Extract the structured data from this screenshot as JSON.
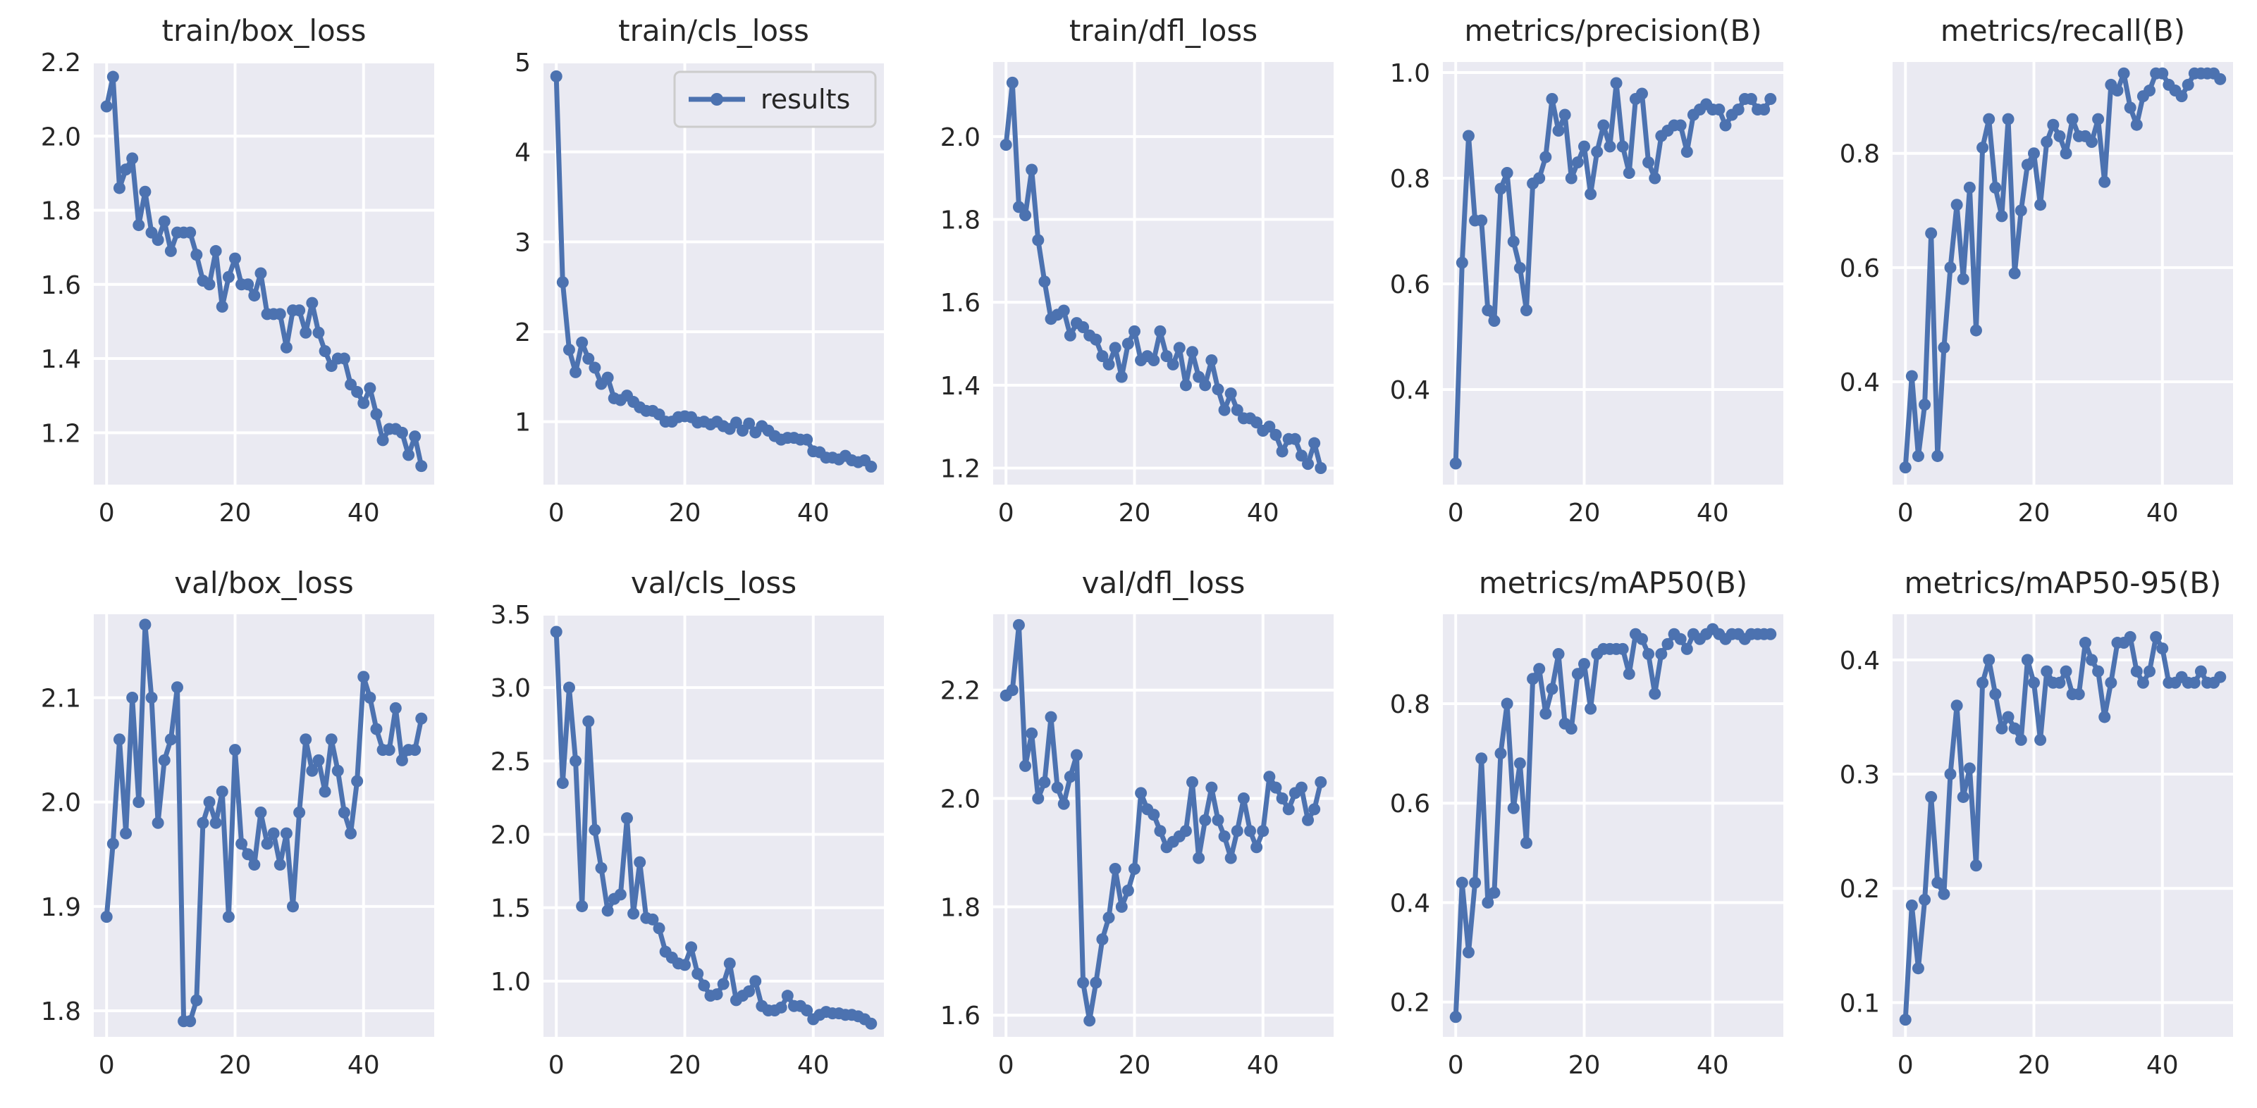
{
  "figure": {
    "legend_label": "results",
    "colors": {
      "background": "#eaeaf2",
      "series": "#4c72b0",
      "grid": "#ffffff",
      "text": "#262626"
    }
  },
  "chart_data": [
    {
      "type": "line",
      "title": "train/box_loss",
      "xlim": [
        -2,
        51
      ],
      "ylim": [
        1.06,
        2.2
      ],
      "xticks": [
        0,
        20,
        40
      ],
      "yticks": [
        1.2,
        1.4,
        1.6,
        1.8,
        2.0,
        2.2
      ],
      "y": [
        2.08,
        2.16,
        1.86,
        1.91,
        1.94,
        1.76,
        1.85,
        1.74,
        1.72,
        1.77,
        1.69,
        1.74,
        1.74,
        1.74,
        1.68,
        1.61,
        1.6,
        1.69,
        1.54,
        1.62,
        1.67,
        1.6,
        1.6,
        1.57,
        1.63,
        1.52,
        1.52,
        1.52,
        1.43,
        1.53,
        1.53,
        1.47,
        1.55,
        1.47,
        1.42,
        1.38,
        1.4,
        1.4,
        1.33,
        1.31,
        1.28,
        1.32,
        1.25,
        1.18,
        1.21,
        1.21,
        1.2,
        1.14,
        1.19,
        1.11
      ]
    },
    {
      "type": "line",
      "title": "train/cls_loss",
      "xlim": [
        -2,
        51
      ],
      "ylim": [
        0.3,
        5.0
      ],
      "xticks": [
        0,
        20,
        40
      ],
      "yticks": [
        1,
        2,
        3,
        4,
        5
      ],
      "legend": "top-right",
      "y": [
        4.84,
        2.55,
        1.8,
        1.55,
        1.88,
        1.7,
        1.6,
        1.42,
        1.49,
        1.26,
        1.24,
        1.29,
        1.22,
        1.16,
        1.12,
        1.12,
        1.08,
        1.0,
        1.0,
        1.05,
        1.06,
        1.05,
        0.99,
        1.0,
        0.97,
        1.0,
        0.95,
        0.92,
        0.99,
        0.9,
        0.98,
        0.88,
        0.95,
        0.9,
        0.84,
        0.8,
        0.82,
        0.82,
        0.8,
        0.8,
        0.67,
        0.66,
        0.6,
        0.6,
        0.58,
        0.62,
        0.57,
        0.55,
        0.57,
        0.5
      ]
    },
    {
      "type": "line",
      "title": "train/dfl_loss",
      "xlim": [
        -2,
        51
      ],
      "ylim": [
        1.16,
        2.18
      ],
      "xticks": [
        0,
        20,
        40
      ],
      "yticks": [
        1.2,
        1.4,
        1.6,
        1.8,
        2.0
      ],
      "y": [
        1.98,
        2.13,
        1.83,
        1.81,
        1.92,
        1.75,
        1.65,
        1.56,
        1.57,
        1.58,
        1.52,
        1.55,
        1.54,
        1.52,
        1.51,
        1.47,
        1.45,
        1.49,
        1.42,
        1.5,
        1.53,
        1.46,
        1.47,
        1.46,
        1.53,
        1.47,
        1.45,
        1.49,
        1.4,
        1.48,
        1.42,
        1.4,
        1.46,
        1.39,
        1.34,
        1.38,
        1.34,
        1.32,
        1.32,
        1.31,
        1.29,
        1.3,
        1.28,
        1.24,
        1.27,
        1.27,
        1.23,
        1.21,
        1.26,
        1.2
      ]
    },
    {
      "type": "line",
      "title": "metrics/precision(B)",
      "xlim": [
        -2,
        51
      ],
      "ylim": [
        0.22,
        1.02
      ],
      "xticks": [
        0,
        20,
        40
      ],
      "yticks": [
        0.4,
        0.6,
        0.8,
        1.0
      ],
      "y": [
        0.26,
        0.64,
        0.88,
        0.72,
        0.72,
        0.55,
        0.53,
        0.78,
        0.81,
        0.68,
        0.63,
        0.55,
        0.79,
        0.8,
        0.84,
        0.95,
        0.89,
        0.92,
        0.8,
        0.83,
        0.86,
        0.77,
        0.85,
        0.9,
        0.86,
        0.98,
        0.86,
        0.81,
        0.95,
        0.96,
        0.83,
        0.8,
        0.88,
        0.89,
        0.9,
        0.9,
        0.85,
        0.92,
        0.93,
        0.94,
        0.93,
        0.93,
        0.9,
        0.92,
        0.93,
        0.95,
        0.95,
        0.93,
        0.93,
        0.95
      ]
    },
    {
      "type": "line",
      "title": "metrics/recall(B)",
      "xlim": [
        -2,
        51
      ],
      "ylim": [
        0.22,
        0.96
      ],
      "xticks": [
        0,
        20,
        40
      ],
      "yticks": [
        0.4,
        0.6,
        0.8
      ],
      "y": [
        0.25,
        0.41,
        0.27,
        0.36,
        0.66,
        0.27,
        0.46,
        0.6,
        0.71,
        0.58,
        0.74,
        0.49,
        0.81,
        0.86,
        0.74,
        0.69,
        0.86,
        0.59,
        0.7,
        0.78,
        0.8,
        0.71,
        0.82,
        0.85,
        0.83,
        0.8,
        0.86,
        0.83,
        0.83,
        0.82,
        0.86,
        0.75,
        0.92,
        0.91,
        0.94,
        0.88,
        0.85,
        0.9,
        0.91,
        0.94,
        0.94,
        0.92,
        0.91,
        0.9,
        0.92,
        0.94,
        0.94,
        0.94,
        0.94,
        0.93
      ]
    },
    {
      "type": "line",
      "title": "val/box_loss",
      "xlim": [
        -2,
        51
      ],
      "ylim": [
        1.775,
        2.18
      ],
      "xticks": [
        0,
        20,
        40
      ],
      "yticks": [
        1.8,
        1.9,
        2.0,
        2.1
      ],
      "y": [
        1.89,
        1.96,
        2.06,
        1.97,
        2.1,
        2.0,
        2.17,
        2.1,
        1.98,
        2.04,
        2.06,
        2.11,
        1.79,
        1.79,
        1.81,
        1.98,
        2.0,
        1.98,
        2.01,
        1.89,
        2.05,
        1.96,
        1.95,
        1.94,
        1.99,
        1.96,
        1.97,
        1.94,
        1.97,
        1.9,
        1.99,
        2.06,
        2.03,
        2.04,
        2.01,
        2.06,
        2.03,
        1.99,
        1.97,
        2.02,
        2.12,
        2.1,
        2.07,
        2.05,
        2.05,
        2.09,
        2.04,
        2.05,
        2.05,
        2.08
      ]
    },
    {
      "type": "line",
      "title": "val/cls_loss",
      "xlim": [
        -2,
        51
      ],
      "ylim": [
        0.62,
        3.5
      ],
      "xticks": [
        0,
        20,
        40
      ],
      "yticks": [
        1.0,
        1.5,
        2.0,
        2.5,
        3.0,
        3.5
      ],
      "y": [
        3.38,
        2.35,
        3.0,
        2.5,
        1.51,
        2.77,
        2.03,
        1.77,
        1.48,
        1.56,
        1.59,
        2.11,
        1.46,
        1.81,
        1.43,
        1.42,
        1.36,
        1.2,
        1.16,
        1.12,
        1.11,
        1.23,
        1.05,
        0.97,
        0.9,
        0.91,
        0.98,
        1.12,
        0.87,
        0.9,
        0.93,
        1.0,
        0.83,
        0.8,
        0.8,
        0.82,
        0.9,
        0.83,
        0.83,
        0.8,
        0.74,
        0.77,
        0.79,
        0.78,
        0.78,
        0.77,
        0.77,
        0.76,
        0.74,
        0.71
      ]
    },
    {
      "type": "line",
      "title": "val/dfl_loss",
      "xlim": [
        -2,
        51
      ],
      "ylim": [
        1.56,
        2.34
      ],
      "xticks": [
        0,
        20,
        40
      ],
      "yticks": [
        1.6,
        1.8,
        2.0,
        2.2
      ],
      "y": [
        2.19,
        2.2,
        2.32,
        2.06,
        2.12,
        2.0,
        2.03,
        2.15,
        2.02,
        1.99,
        2.04,
        2.08,
        1.66,
        1.59,
        1.66,
        1.74,
        1.78,
        1.87,
        1.8,
        1.83,
        1.87,
        2.01,
        1.98,
        1.97,
        1.94,
        1.91,
        1.92,
        1.93,
        1.94,
        2.03,
        1.89,
        1.96,
        2.02,
        1.96,
        1.93,
        1.89,
        1.94,
        2.0,
        1.94,
        1.91,
        1.94,
        2.04,
        2.02,
        2.0,
        1.98,
        2.01,
        2.02,
        1.96,
        1.98,
        2.03
      ]
    },
    {
      "type": "line",
      "title": "metrics/mAP50(B)",
      "xlim": [
        -2,
        51
      ],
      "ylim": [
        0.13,
        0.98
      ],
      "xticks": [
        0,
        20,
        40
      ],
      "yticks": [
        0.2,
        0.4,
        0.6,
        0.8
      ],
      "y": [
        0.17,
        0.44,
        0.3,
        0.44,
        0.69,
        0.4,
        0.42,
        0.7,
        0.8,
        0.59,
        0.68,
        0.52,
        0.85,
        0.87,
        0.78,
        0.83,
        0.9,
        0.76,
        0.75,
        0.86,
        0.88,
        0.79,
        0.9,
        0.91,
        0.91,
        0.91,
        0.91,
        0.86,
        0.94,
        0.93,
        0.9,
        0.82,
        0.9,
        0.92,
        0.94,
        0.93,
        0.91,
        0.94,
        0.93,
        0.94,
        0.95,
        0.94,
        0.93,
        0.94,
        0.94,
        0.93,
        0.94,
        0.94,
        0.94,
        0.94
      ]
    },
    {
      "type": "line",
      "title": "metrics/mAP50-95(B)",
      "xlim": [
        -2,
        51
      ],
      "ylim": [
        0.07,
        0.44
      ],
      "xticks": [
        0,
        20,
        40
      ],
      "yticks": [
        0.1,
        0.2,
        0.3,
        0.4
      ],
      "y": [
        0.085,
        0.185,
        0.13,
        0.19,
        0.28,
        0.205,
        0.195,
        0.3,
        0.36,
        0.28,
        0.305,
        0.22,
        0.38,
        0.4,
        0.37,
        0.34,
        0.35,
        0.34,
        0.33,
        0.4,
        0.38,
        0.33,
        0.39,
        0.38,
        0.38,
        0.39,
        0.37,
        0.37,
        0.415,
        0.4,
        0.39,
        0.35,
        0.38,
        0.415,
        0.415,
        0.42,
        0.39,
        0.38,
        0.39,
        0.42,
        0.41,
        0.38,
        0.38,
        0.385,
        0.38,
        0.38,
        0.39,
        0.38,
        0.38,
        0.385
      ]
    }
  ]
}
